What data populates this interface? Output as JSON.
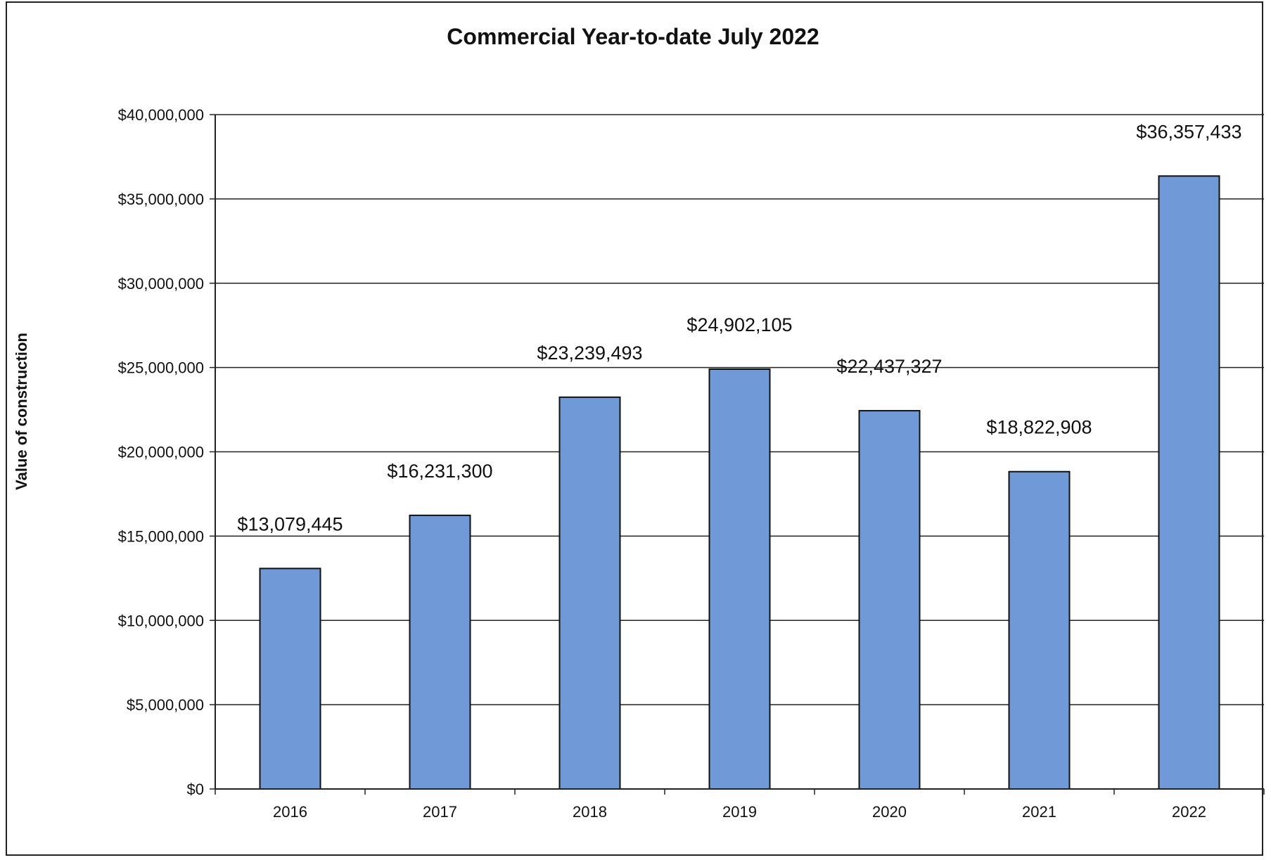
{
  "chart_data": {
    "type": "bar",
    "title": "Commercial Year-to-date July 2022",
    "xlabel": "",
    "ylabel": "Value of construction",
    "categories": [
      "2016",
      "2017",
      "2018",
      "2019",
      "2020",
      "2021",
      "2022"
    ],
    "values": [
      13079445,
      16231300,
      23239493,
      24902105,
      22437327,
      18822908,
      36357433
    ],
    "data_labels": [
      "$13,079,445",
      "$16,231,300",
      "$23,239,493",
      "$24,902,105",
      "$22,437,327",
      "$18,822,908",
      "$36,357,433"
    ],
    "ylim": [
      0,
      40000000
    ],
    "yticks": [
      0,
      5000000,
      10000000,
      15000000,
      20000000,
      25000000,
      30000000,
      35000000,
      40000000
    ],
    "ytick_labels": [
      "$0",
      "$5,000,000",
      "$10,000,000",
      "$15,000,000",
      "$20,000,000",
      "$25,000,000",
      "$30,000,000",
      "$35,000,000",
      "$40,000,000"
    ],
    "grid": true,
    "legend": false,
    "bar_color": "#7099d7",
    "bar_edge_color": "#111111"
  }
}
